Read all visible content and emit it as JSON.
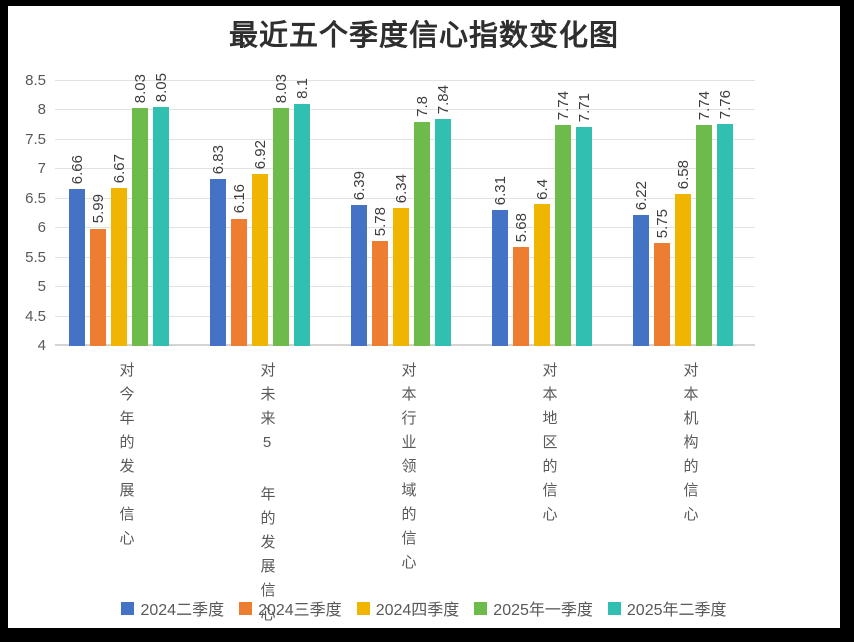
{
  "frame": {
    "border_color": "#000000",
    "background": "#ffffff"
  },
  "chart_data": {
    "type": "bar",
    "title": "最近五个季度信心指数变化图",
    "categories": [
      "对今年的发展信心",
      "对未来5 年的发展信心",
      "对本行业领域的信心",
      "对本地区的信心",
      "对本机构的信心"
    ],
    "series": [
      {
        "name": "2024二季度",
        "color": "#4472c4",
        "values": [
          6.66,
          6.83,
          6.39,
          6.31,
          6.22
        ]
      },
      {
        "name": "2024三季度",
        "color": "#ed7d31",
        "values": [
          5.99,
          6.16,
          5.78,
          5.68,
          5.75
        ]
      },
      {
        "name": "2024四季度",
        "color": "#f0b500",
        "values": [
          6.67,
          6.92,
          6.34,
          6.4,
          6.58
        ]
      },
      {
        "name": "2025年一季度",
        "color": "#6dbc4b",
        "values": [
          8.03,
          8.03,
          7.8,
          7.74,
          7.74
        ]
      },
      {
        "name": "2025年二季度",
        "color": "#31bfb2",
        "values": [
          8.05,
          8.1,
          7.84,
          7.71,
          7.76
        ]
      }
    ],
    "ylim": [
      4,
      8.5
    ],
    "yticks": [
      4,
      4.5,
      5,
      5.5,
      6,
      6.5,
      7,
      7.5,
      8,
      8.5
    ],
    "grid": true,
    "legend_position": "bottom",
    "value_labels_rotation": "vertical",
    "gridline_color": "#e2e2df",
    "label_color": "#595959",
    "value_label_color": "#3d3d3d"
  }
}
